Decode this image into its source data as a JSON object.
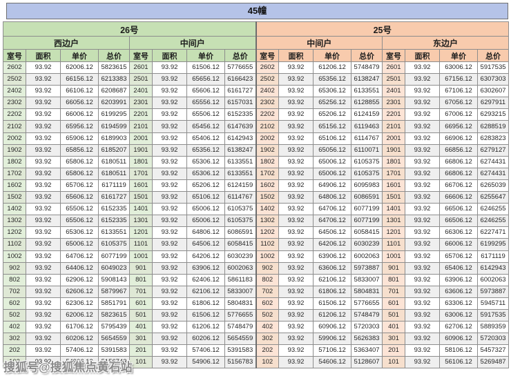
{
  "title": "45幢",
  "watermark": "搜狐号@搜狐焦点黄石站",
  "column_headers": [
    "室号",
    "面积",
    "单价",
    "总价"
  ],
  "buildings": [
    {
      "label": "26号",
      "color": "#c6e0b4",
      "room_tint": "#e2efda",
      "units": [
        "西边户",
        "中间户"
      ]
    },
    {
      "label": "25号",
      "color": "#f8cbad",
      "room_tint": "#fce4d6",
      "units": [
        "中间户",
        "东边户"
      ]
    }
  ],
  "colors": {
    "title_bg": "#b5c3e8",
    "alt_row": "#efefef",
    "border": "#8c8c8c"
  },
  "rows": [
    [
      "2602",
      "93.92",
      "62006.12",
      "5823615",
      "2601",
      "93.92",
      "61506.12",
      "5776655",
      "2602",
      "93.92",
      "61206.12",
      "5748479",
      "2601",
      "93.92",
      "63006.12",
      "5917535"
    ],
    [
      "2502",
      "93.92",
      "66156.12",
      "6213383",
      "2501",
      "93.92",
      "65656.12",
      "6166423",
      "2502",
      "93.92",
      "65356.12",
      "6138247",
      "2501",
      "93.92",
      "67156.12",
      "6307303"
    ],
    [
      "2402",
      "93.92",
      "66106.12",
      "6208687",
      "2401",
      "93.92",
      "65606.12",
      "6161727",
      "2402",
      "93.92",
      "65306.12",
      "6133551",
      "2401",
      "93.92",
      "67106.12",
      "6302607"
    ],
    [
      "2302",
      "93.92",
      "66056.12",
      "6203991",
      "2301",
      "93.92",
      "65556.12",
      "6157031",
      "2302",
      "93.92",
      "65256.12",
      "6128855",
      "2301",
      "93.92",
      "67056.12",
      "6297911"
    ],
    [
      "2202",
      "93.92",
      "66006.12",
      "6199295",
      "2201",
      "93.92",
      "65506.12",
      "6152335",
      "2202",
      "93.92",
      "65206.12",
      "6124159",
      "2201",
      "93.92",
      "67006.12",
      "6293215"
    ],
    [
      "2102",
      "93.92",
      "65956.12",
      "6194599",
      "2101",
      "93.92",
      "65456.12",
      "6147639",
      "2102",
      "93.92",
      "65156.12",
      "6119463",
      "2101",
      "93.92",
      "66956.12",
      "6288519"
    ],
    [
      "2002",
      "93.92",
      "65906.12",
      "6189903",
      "2001",
      "93.92",
      "65406.12",
      "6142943",
      "2002",
      "93.92",
      "65106.12",
      "6114767",
      "2001",
      "93.92",
      "66906.12",
      "6283823"
    ],
    [
      "1902",
      "93.92",
      "65856.12",
      "6185207",
      "1901",
      "93.92",
      "65356.12",
      "6138247",
      "1902",
      "93.92",
      "65056.12",
      "6110071",
      "1901",
      "93.92",
      "66856.12",
      "6279127"
    ],
    [
      "1802",
      "93.92",
      "65806.12",
      "6180511",
      "1801",
      "93.92",
      "65306.12",
      "6133551",
      "1802",
      "93.92",
      "65006.12",
      "6105375",
      "1801",
      "93.92",
      "66806.12",
      "6274431"
    ],
    [
      "1702",
      "93.92",
      "65806.12",
      "6180511",
      "1701",
      "93.92",
      "65306.12",
      "6133551",
      "1702",
      "93.92",
      "65006.12",
      "6105375",
      "1701",
      "93.92",
      "66806.12",
      "6274431"
    ],
    [
      "1602",
      "93.92",
      "65706.12",
      "6171119",
      "1601",
      "93.92",
      "65206.12",
      "6124159",
      "1602",
      "93.92",
      "64906.12",
      "6095983",
      "1601",
      "93.92",
      "66706.12",
      "6265039"
    ],
    [
      "1502",
      "93.92",
      "65606.12",
      "6161727",
      "1501",
      "93.92",
      "65106.12",
      "6114767",
      "1502",
      "93.92",
      "64806.12",
      "6086591",
      "1501",
      "93.92",
      "66606.12",
      "6255647"
    ],
    [
      "1402",
      "93.92",
      "65506.12",
      "6152335",
      "1401",
      "93.92",
      "65006.12",
      "6105375",
      "1402",
      "93.92",
      "64706.12",
      "6077199",
      "1401",
      "93.92",
      "66506.12",
      "6246255"
    ],
    [
      "1302",
      "93.92",
      "65506.12",
      "6152335",
      "1301",
      "93.92",
      "65006.12",
      "6105375",
      "1302",
      "93.92",
      "64706.12",
      "6077199",
      "1301",
      "93.92",
      "66506.12",
      "6246255"
    ],
    [
      "1202",
      "93.92",
      "65306.12",
      "6133551",
      "1201",
      "93.92",
      "64806.12",
      "6086591",
      "1202",
      "93.92",
      "64506.12",
      "6058415",
      "1201",
      "93.92",
      "66306.12",
      "6227471"
    ],
    [
      "1102",
      "93.92",
      "65006.12",
      "6105375",
      "1101",
      "93.92",
      "64506.12",
      "6058415",
      "1102",
      "93.92",
      "64206.12",
      "6030239",
      "1101",
      "93.92",
      "66006.12",
      "6199295"
    ],
    [
      "1002",
      "93.92",
      "64706.12",
      "6077199",
      "1001",
      "93.92",
      "64206.12",
      "6030239",
      "1002",
      "93.92",
      "63906.12",
      "6002063",
      "1001",
      "93.92",
      "65706.12",
      "6171119"
    ],
    [
      "902",
      "93.92",
      "64406.12",
      "6049023",
      "901",
      "93.92",
      "63906.12",
      "6002063",
      "902",
      "93.92",
      "63606.12",
      "5973887",
      "901",
      "93.92",
      "65406.12",
      "6142943"
    ],
    [
      "802",
      "93.92",
      "62906.12",
      "5908143",
      "801",
      "93.92",
      "62406.12",
      "5861183",
      "802",
      "93.92",
      "62106.12",
      "5833007",
      "801",
      "93.92",
      "63906.12",
      "6002063"
    ],
    [
      "702",
      "93.92",
      "62606.12",
      "5879967",
      "701",
      "93.92",
      "62106.12",
      "5833007",
      "702",
      "93.92",
      "61806.12",
      "5804831",
      "701",
      "93.92",
      "63606.12",
      "5973887"
    ],
    [
      "602",
      "93.92",
      "62306.12",
      "5851791",
      "601",
      "93.92",
      "61806.12",
      "5804831",
      "602",
      "93.92",
      "61506.12",
      "5776655",
      "601",
      "93.92",
      "63306.12",
      "5945711"
    ],
    [
      "502",
      "93.92",
      "62006.12",
      "5823615",
      "501",
      "93.92",
      "61506.12",
      "5776655",
      "502",
      "93.92",
      "61206.12",
      "5748479",
      "501",
      "93.92",
      "63006.12",
      "5917535"
    ],
    [
      "402",
      "93.92",
      "61706.12",
      "5795439",
      "401",
      "93.92",
      "61206.12",
      "5748479",
      "402",
      "93.92",
      "60906.12",
      "5720303",
      "401",
      "93.92",
      "62706.12",
      "5889359"
    ],
    [
      "302",
      "93.92",
      "60206.12",
      "5654559",
      "301",
      "93.92",
      "60206.12",
      "5654559",
      "302",
      "93.92",
      "59906.12",
      "5626383",
      "301",
      "93.92",
      "60906.12",
      "5720303"
    ],
    [
      "202",
      "93.92",
      "57406.12",
      "5391583",
      "201",
      "93.92",
      "57406.12",
      "5391583",
      "202",
      "93.92",
      "57106.12",
      "5363407",
      "201",
      "93.92",
      "58106.12",
      "5457327"
    ],
    [
      "102",
      "93.92",
      "54906.12",
      "5156743",
      "101",
      "93.92",
      "54906.12",
      "5156783",
      "102",
      "93.92",
      "54606.12",
      "5128607",
      "101",
      "93.92",
      "56106.12",
      "5269487"
    ]
  ]
}
